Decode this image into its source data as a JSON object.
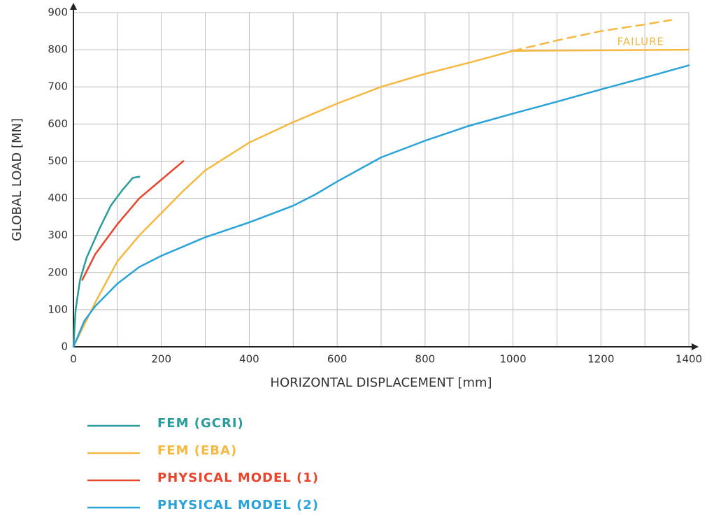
{
  "chart_data": {
    "type": "line",
    "xlabel": "HORIZONTAL DISPLACEMENT [mm]",
    "ylabel": "GLOBAL LOAD [MN]",
    "xlim": [
      0,
      1400
    ],
    "ylim": [
      0,
      900
    ],
    "xticks": [
      0,
      200,
      400,
      600,
      800,
      1000,
      1200,
      1400
    ],
    "yticks": [
      0,
      100,
      200,
      300,
      400,
      500,
      600,
      700,
      800,
      900
    ],
    "xgrid": [
      0,
      100,
      200,
      300,
      400,
      500,
      600,
      700,
      800,
      900,
      1000,
      1100,
      1200,
      1300,
      1400
    ],
    "grid": true,
    "series": [
      {
        "name": "FEM (GCRI)",
        "color": "#2a9d9a",
        "x": [
          0,
          5,
          15,
          30,
          60,
          85,
          110,
          135,
          150
        ],
        "values": [
          0,
          100,
          180,
          240,
          320,
          380,
          420,
          455,
          458
        ]
      },
      {
        "name": "FEM (EBA)",
        "color": "#f5b942",
        "x": [
          0,
          50,
          100,
          150,
          250,
          300,
          400,
          500,
          600,
          700,
          800,
          900,
          1000,
          1400
        ],
        "values": [
          0,
          120,
          230,
          300,
          420,
          475,
          550,
          605,
          655,
          700,
          735,
          765,
          797,
          800
        ]
      },
      {
        "name": "PHYSICAL MODEL (1)",
        "color": "#e8452c",
        "x": [
          20,
          50,
          100,
          150,
          200,
          250
        ],
        "values": [
          180,
          250,
          330,
          400,
          450,
          500
        ]
      },
      {
        "name": "PHYSICAL MODEL (2)",
        "color": "#2aa3d8",
        "x": [
          0,
          25,
          50,
          100,
          150,
          200,
          300,
          400,
          500,
          550,
          600,
          700,
          800,
          900,
          1000,
          1100,
          1200,
          1300,
          1400
        ],
        "values": [
          0,
          70,
          110,
          170,
          215,
          245,
          295,
          335,
          380,
          410,
          445,
          510,
          555,
          595,
          628,
          660,
          693,
          725,
          758
        ]
      }
    ],
    "failure": {
      "label": "FAILURE",
      "color": "#f5b942",
      "x": [
        1000,
        1100,
        1200,
        1300,
        1360
      ],
      "values": [
        797,
        825,
        850,
        868,
        880
      ]
    }
  }
}
